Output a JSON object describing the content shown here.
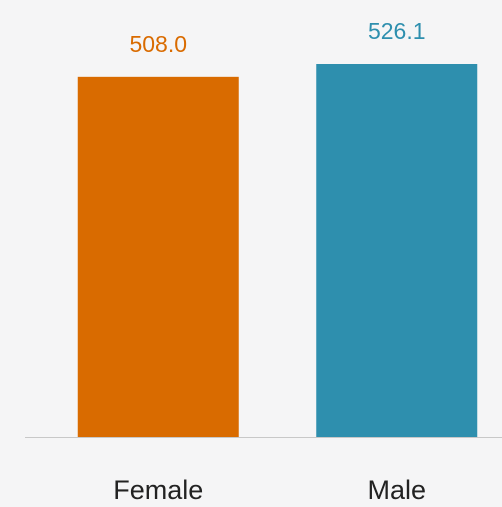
{
  "chart_data": {
    "type": "bar",
    "categories": [
      "Female",
      "Male"
    ],
    "series": [
      {
        "values": [
          508.0,
          526.1
        ],
        "value_labels": [
          "508.0",
          "526.1"
        ],
        "colors": [
          "#d96b00",
          "#2e8fae"
        ]
      }
    ]
  }
}
